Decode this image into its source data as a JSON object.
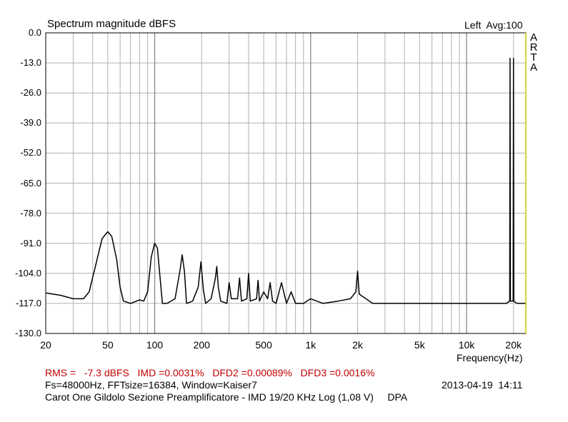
{
  "title": "Spectrum magnitude dBFS",
  "channel_info": "Left  Avg:100",
  "brand": "ARTA",
  "xlabel": "Frequency(Hz)",
  "stats": "RMS =   -7.3 dBFS   IMD =0.0031%   DFD2 =0.00089%   DFD3 =0.0016%",
  "params": "Fs=48000Hz, FFTsize=16384, Window=Kaiser7",
  "datetime": "2013-04-19  14:11",
  "caption": "Carot One Gildolo Sezione Preamplificatore - IMD 19/20 KHz Log (1,08 V)     DPA",
  "yticks": [
    "0.0",
    "-13.0",
    "-26.0",
    "-39.0",
    "-52.0",
    "-65.0",
    "-78.0",
    "-91.0",
    "-104.0",
    "-117.0",
    "-130.0"
  ],
  "xticks": [
    {
      "f": 20,
      "label": "20"
    },
    {
      "f": 50,
      "label": "50"
    },
    {
      "f": 100,
      "label": "100"
    },
    {
      "f": 200,
      "label": "200"
    },
    {
      "f": 500,
      "label": "500"
    },
    {
      "f": 1000,
      "label": "1k"
    },
    {
      "f": 2000,
      "label": "2k"
    },
    {
      "f": 5000,
      "label": "5k"
    },
    {
      "f": 10000,
      "label": "10k"
    },
    {
      "f": 20000,
      "label": "20k"
    }
  ],
  "colors": {
    "trace": "#000000",
    "grid": "#b0b0b0",
    "frame": "#000000",
    "right_axis": "#c8c800",
    "stats": "#c00000"
  },
  "chart_data": {
    "type": "line",
    "title": "Spectrum magnitude dBFS",
    "xlabel": "Frequency(Hz)",
    "ylabel": "",
    "x_scale": "log",
    "xlim": [
      20,
      24000
    ],
    "ylim": [
      -130,
      0
    ],
    "grid": true,
    "series": [
      {
        "points": [
          [
            20,
            -112.5
          ],
          [
            25,
            -113.5
          ],
          [
            30,
            -115
          ],
          [
            35,
            -115
          ],
          [
            38,
            -112
          ],
          [
            42,
            -100
          ],
          [
            46,
            -89
          ],
          [
            50,
            -86
          ],
          [
            53,
            -88
          ],
          [
            57,
            -98
          ],
          [
            60,
            -110
          ],
          [
            63,
            -116
          ],
          [
            70,
            -117
          ],
          [
            80,
            -115.5
          ],
          [
            85,
            -116
          ],
          [
            90,
            -112
          ],
          [
            95,
            -97
          ],
          [
            100,
            -91
          ],
          [
            104,
            -93
          ],
          [
            108,
            -105
          ],
          [
            112,
            -117
          ],
          [
            120,
            -117
          ],
          [
            135,
            -115
          ],
          [
            145,
            -103
          ],
          [
            150,
            -96
          ],
          [
            155,
            -103
          ],
          [
            160,
            -117
          ],
          [
            175,
            -116
          ],
          [
            190,
            -110
          ],
          [
            198,
            -99
          ],
          [
            205,
            -111
          ],
          [
            212,
            -117
          ],
          [
            230,
            -115
          ],
          [
            245,
            -106
          ],
          [
            250,
            -101
          ],
          [
            256,
            -110
          ],
          [
            265,
            -116
          ],
          [
            290,
            -117
          ],
          [
            300,
            -108
          ],
          [
            310,
            -115
          ],
          [
            340,
            -115
          ],
          [
            350,
            -106
          ],
          [
            360,
            -116
          ],
          [
            390,
            -115
          ],
          [
            400,
            -104
          ],
          [
            410,
            -116
          ],
          [
            450,
            -115
          ],
          [
            460,
            -107
          ],
          [
            470,
            -116
          ],
          [
            500,
            -112
          ],
          [
            530,
            -115
          ],
          [
            550,
            -108
          ],
          [
            570,
            -116
          ],
          [
            600,
            -117
          ],
          [
            650,
            -108
          ],
          [
            700,
            -117
          ],
          [
            750,
            -112
          ],
          [
            800,
            -117
          ],
          [
            900,
            -117
          ],
          [
            1000,
            -115
          ],
          [
            1200,
            -117
          ],
          [
            1500,
            -116
          ],
          [
            1800,
            -115
          ],
          [
            1950,
            -112
          ],
          [
            2000,
            -103
          ],
          [
            2050,
            -113
          ],
          [
            2500,
            -117
          ],
          [
            3000,
            -117
          ],
          [
            4000,
            -117
          ],
          [
            5000,
            -117
          ],
          [
            6000,
            -117
          ],
          [
            8000,
            -117
          ],
          [
            10000,
            -117
          ],
          [
            14000,
            -117
          ],
          [
            18000,
            -117
          ],
          [
            18900,
            -116
          ],
          [
            19000,
            -11
          ],
          [
            19100,
            -116
          ],
          [
            19900,
            -116
          ],
          [
            20000,
            -11
          ],
          [
            20100,
            -116
          ],
          [
            21000,
            -117
          ],
          [
            24000,
            -117
          ]
        ]
      }
    ]
  }
}
